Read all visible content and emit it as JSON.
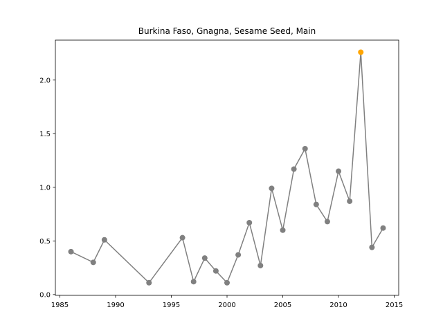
{
  "chart_data": {
    "type": "line",
    "title": "Burkina Faso, Gnagna, Sesame Seed, Main",
    "xlabel": "",
    "ylabel": "",
    "xlim": [
      1984.6,
      2015.4
    ],
    "ylim": [
      -0.0075,
      2.3725
    ],
    "x_ticks": [
      1985,
      1990,
      1995,
      2000,
      2005,
      2010,
      2015
    ],
    "x_tick_labels": [
      "1985",
      "1990",
      "1995",
      "2000",
      "2005",
      "2010",
      "2015"
    ],
    "y_ticks": [
      0.0,
      0.5,
      1.0,
      1.5,
      2.0
    ],
    "y_tick_labels": [
      "0.0",
      "0.5",
      "1.0",
      "1.5",
      "2.0"
    ],
    "grid": false,
    "series": [
      {
        "color": "#808080",
        "marker": "circle",
        "points": [
          {
            "x": 1986,
            "y": 0.4
          },
          {
            "x": 1988,
            "y": 0.3
          },
          {
            "x": 1989,
            "y": 0.51
          },
          {
            "x": 1993,
            "y": 0.11
          },
          {
            "x": 1996,
            "y": 0.53
          },
          {
            "x": 1997,
            "y": 0.12
          },
          {
            "x": 1998,
            "y": 0.34
          },
          {
            "x": 1999,
            "y": 0.22
          },
          {
            "x": 2000,
            "y": 0.11
          },
          {
            "x": 2001,
            "y": 0.37
          },
          {
            "x": 2002,
            "y": 0.67
          },
          {
            "x": 2003,
            "y": 0.27
          },
          {
            "x": 2004,
            "y": 0.99
          },
          {
            "x": 2005,
            "y": 0.6
          },
          {
            "x": 2006,
            "y": 1.17
          },
          {
            "x": 2007,
            "y": 1.36
          },
          {
            "x": 2008,
            "y": 0.84
          },
          {
            "x": 2009,
            "y": 0.68
          },
          {
            "x": 2010,
            "y": 1.15
          },
          {
            "x": 2011,
            "y": 0.87
          },
          {
            "x": 2012,
            "y": 2.26
          },
          {
            "x": 2013,
            "y": 0.44
          },
          {
            "x": 2014,
            "y": 0.62
          }
        ]
      }
    ],
    "highlight": {
      "x": 2012,
      "y": 2.26,
      "color": "#ffa500"
    }
  }
}
